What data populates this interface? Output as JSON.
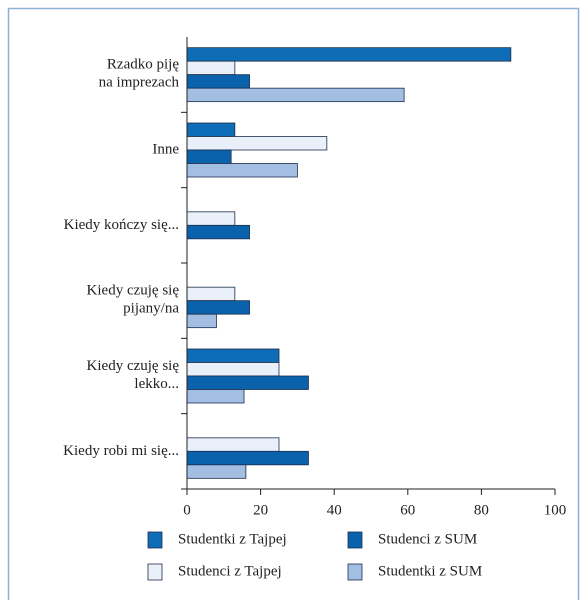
{
  "chart_data": {
    "type": "barh",
    "categories": [
      "Rzadko piję\nna imprezach",
      "Inne",
      "Kiedy kończy się...",
      "Kiedy czuję się\npijany/na",
      "Kiedy czuję się\nlekko...",
      "Kiedy robi mi się..."
    ],
    "series": [
      {
        "name": "Studentki z Tajpej",
        "color": "#0f6cb6",
        "values": [
          88,
          13,
          null,
          null,
          25,
          null
        ]
      },
      {
        "name": "Studenci z Tajpej",
        "color": "#eaf0fa",
        "values": [
          13,
          38,
          13,
          13,
          25,
          25
        ]
      },
      {
        "name": "Studenci z SUM",
        "color": "#0a62ad",
        "values": [
          17,
          12,
          17,
          17,
          33,
          33
        ]
      },
      {
        "name": "Studentki z SUM",
        "color": "#a3bee3",
        "values": [
          59,
          30,
          null,
          8,
          15.5,
          16
        ]
      }
    ],
    "xlim": [
      0,
      100
    ],
    "xticks": [
      0,
      20,
      40,
      60,
      80,
      100
    ]
  }
}
